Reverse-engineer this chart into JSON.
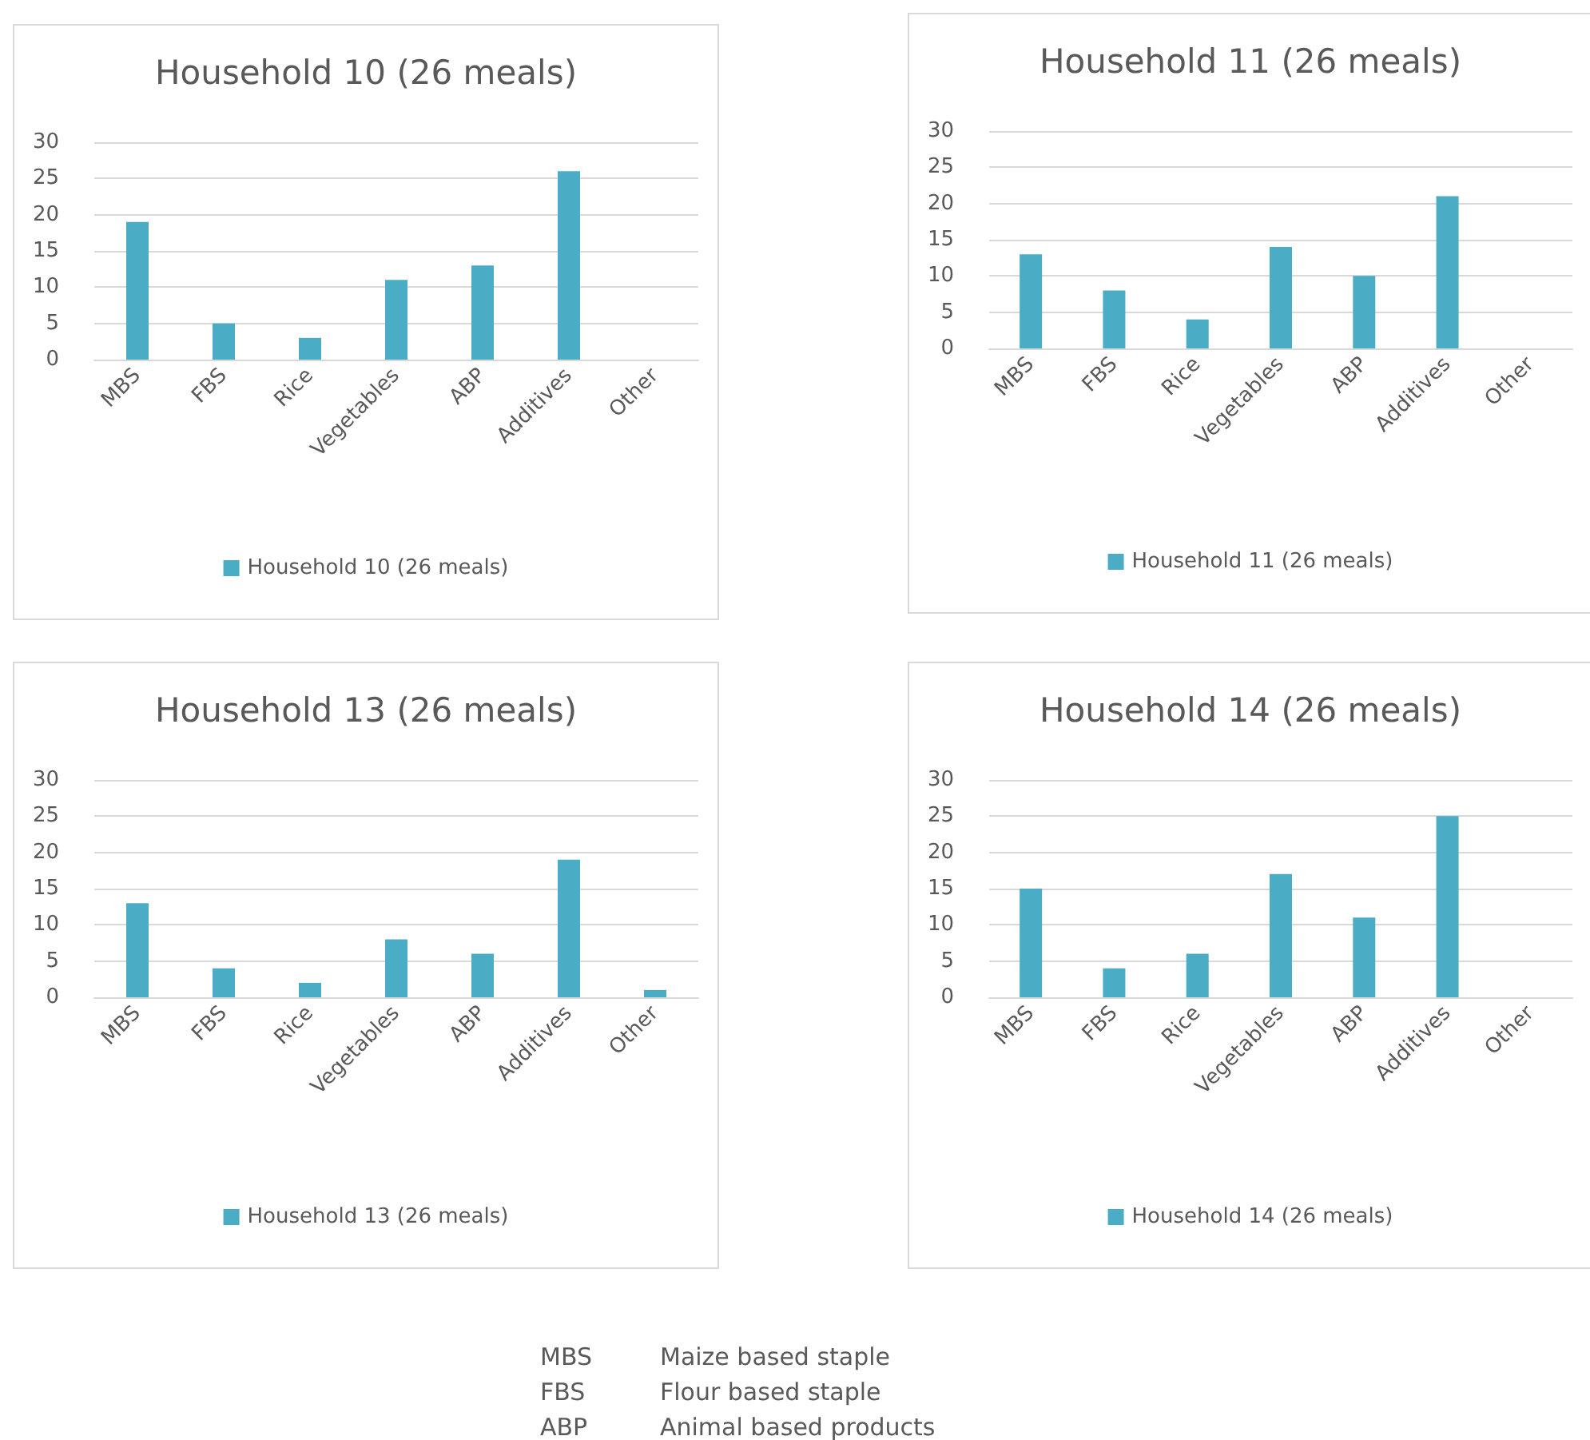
{
  "chart_data": [
    {
      "type": "bar",
      "title": "Household 10 (26 meals)",
      "categories": [
        "MBS",
        "FBS",
        "Rice",
        "Vegetables",
        "ABP",
        "Additives",
        "Other"
      ],
      "series": [
        {
          "name": "Household 10 (26 meals)",
          "color": "#4bacc6",
          "values": [
            19,
            5,
            3,
            11,
            13,
            26,
            0
          ]
        }
      ],
      "ylim": [
        0,
        30
      ],
      "yticks": [
        0,
        5,
        10,
        15,
        20,
        25,
        30
      ],
      "grid": "y",
      "legend": "bottom"
    },
    {
      "type": "bar",
      "title": "Household 11 (26 meals)",
      "categories": [
        "MBS",
        "FBS",
        "Rice",
        "Vegetables",
        "ABP",
        "Additives",
        "Other"
      ],
      "series": [
        {
          "name": "Household 11 (26 meals)",
          "color": "#4bacc6",
          "values": [
            13,
            8,
            4,
            14,
            10,
            21,
            0
          ]
        }
      ],
      "ylim": [
        0,
        30
      ],
      "yticks": [
        0,
        5,
        10,
        15,
        20,
        25,
        30
      ],
      "grid": "y",
      "legend": "bottom"
    },
    {
      "type": "bar",
      "title": "Household 13 (26 meals)",
      "categories": [
        "MBS",
        "FBS",
        "Rice",
        "Vegetables",
        "ABP",
        "Additives",
        "Other"
      ],
      "series": [
        {
          "name": "Household 13 (26 meals)",
          "color": "#4bacc6",
          "values": [
            13,
            4,
            2,
            8,
            6,
            19,
            1
          ]
        }
      ],
      "ylim": [
        0,
        30
      ],
      "yticks": [
        0,
        5,
        10,
        15,
        20,
        25,
        30
      ],
      "grid": "y",
      "legend": "bottom"
    },
    {
      "type": "bar",
      "title": "Household 14 (26 meals)",
      "categories": [
        "MBS",
        "FBS",
        "Rice",
        "Vegetables",
        "ABP",
        "Additives",
        "Other"
      ],
      "series": [
        {
          "name": "Household 14 (26 meals)",
          "color": "#4bacc6",
          "values": [
            15,
            4,
            6,
            17,
            11,
            25,
            0
          ]
        }
      ],
      "ylim": [
        0,
        30
      ],
      "yticks": [
        0,
        5,
        10,
        15,
        20,
        25,
        30
      ],
      "grid": "y",
      "legend": "bottom"
    },
    {
      "type": "other",
      "annotations": [
        "MBS\tMaize based staple",
        "FBS\tFlour based staple",
        "ABP\tAnimal based products"
      ]
    }
  ]
}
